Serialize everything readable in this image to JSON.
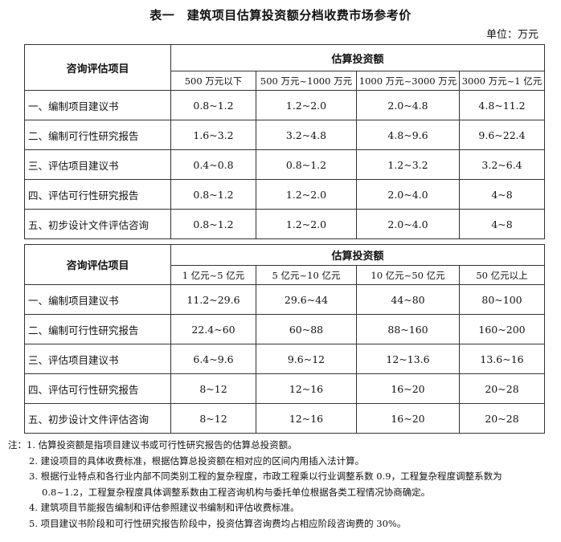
{
  "title": "表一　建筑项目估算投资额分档收费市场参考价",
  "unit": "单位：万元",
  "tables": [
    {
      "row_header": "咨询评估项目",
      "group_header": "估算投资额",
      "columns": [
        "500 万元以下",
        "500 万元~1000 万元",
        "1000 万元~3000 万元",
        "3000 万元~1 亿元"
      ],
      "rows": [
        {
          "item": "一、编制项目建议书",
          "values": [
            "0.8~1.2",
            "1.2~2.0",
            "2.0~4.8",
            "4.8~11.2"
          ]
        },
        {
          "item": "二、编制可行性研究报告",
          "values": [
            "1.6~3.2",
            "3.2~4.8",
            "4.8~9.6",
            "9.6~22.4"
          ]
        },
        {
          "item": "三、评估项目建议书",
          "values": [
            "0.4~0.8",
            "0.8~1.2",
            "1.2~3.2",
            "3.2~6.4"
          ]
        },
        {
          "item": "四、评估可行性研究报告",
          "values": [
            "0.8~1.2",
            "1.2~2.0",
            "2.0~4.0",
            "4~8"
          ]
        },
        {
          "item": "五、初步设计文件评估咨询",
          "values": [
            "0.8~1.2",
            "1.2~2.0",
            "2.0~4.0",
            "4~8"
          ]
        }
      ]
    },
    {
      "row_header": "咨询评估项目",
      "group_header": "估算投资额",
      "columns": [
        "1 亿元~5 亿元",
        "5 亿元~10 亿元",
        "10 亿元~50 亿元",
        "50 亿元以上"
      ],
      "rows": [
        {
          "item": "一、编制项目建议书",
          "values": [
            "11.2~29.6",
            "29.6~44",
            "44~80",
            "80~100"
          ]
        },
        {
          "item": "二、编制可行性研究报告",
          "values": [
            "22.4~60",
            "60~88",
            "88~160",
            "160~200"
          ]
        },
        {
          "item": "三、评估项目建议书",
          "values": [
            "6.4~9.6",
            "9.6~12",
            "12~13.6",
            "13.6~16"
          ]
        },
        {
          "item": "四、评估可行性研究报告",
          "values": [
            "8~12",
            "12~16",
            "16~20",
            "20~28"
          ]
        },
        {
          "item": "五、初步设计文件评估咨询",
          "values": [
            "8~12",
            "12~16",
            "16~20",
            "20~28"
          ]
        }
      ]
    }
  ],
  "notes": [
    "注：1. 估算投资额是指项目建议书或可行性研究报告的估算总投资额。",
    "2. 建设项目的具体收费标准，根据估算总投资额在相对应的区间内用插入法计算。",
    "3. 根据行业特点和各行业内部不同类别工程的复杂程度，市政工程乘以行业调整系数 0.9，工程复杂程度调整系数为",
    "0.8~1.2，工程复杂程度具体调整系数由工程咨询机构与委托单位根据各类工程情况协商确定。",
    "4. 建筑项目节能报告编制和评估参照建议书编制和评估收费标准。",
    "5. 项目建议书阶段和可行性研究报告阶段中，投资估算咨询费均占相应阶段咨询费的 30%。"
  ]
}
